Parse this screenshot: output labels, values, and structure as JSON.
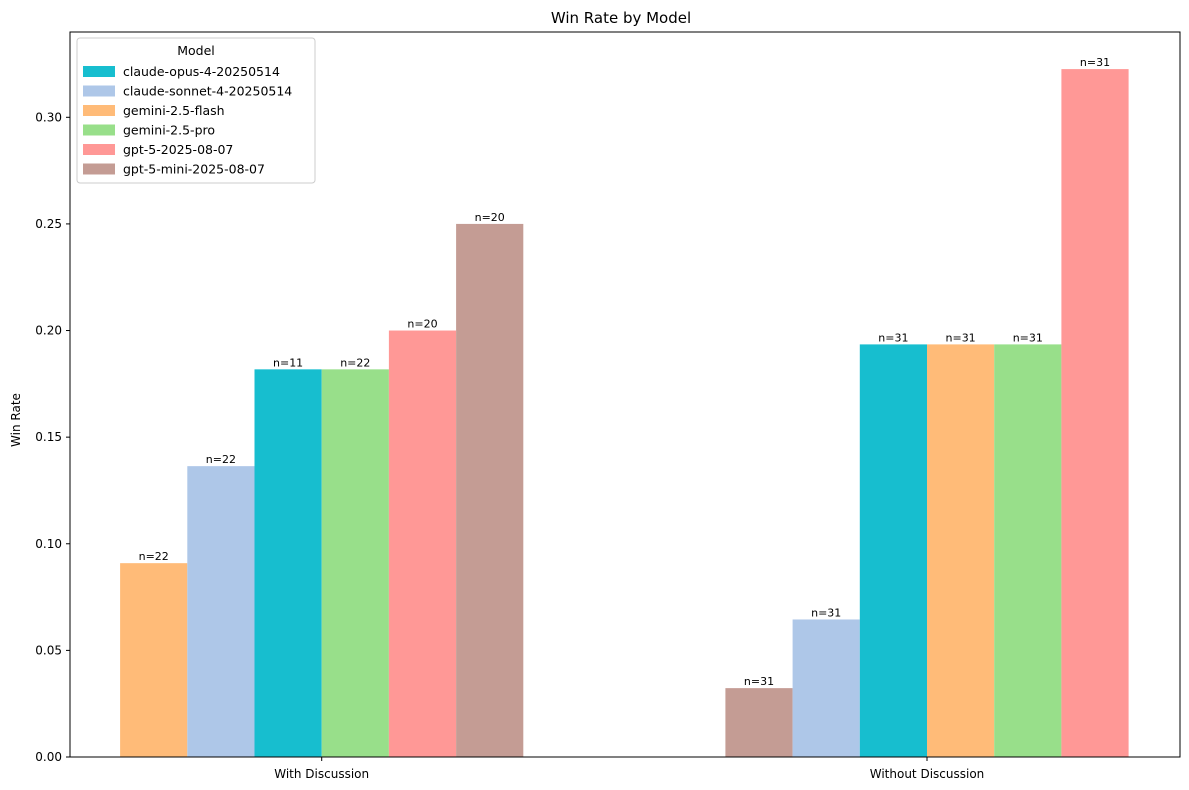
{
  "chart_data": {
    "type": "bar",
    "title": "Win Rate by Model",
    "xlabel": "",
    "ylabel": "Win Rate",
    "ylim": [
      0,
      0.34
    ],
    "yticks": [
      0.0,
      0.05,
      0.1,
      0.15,
      0.2,
      0.25,
      0.3
    ],
    "ytick_labels": [
      "0.00",
      "0.05",
      "0.10",
      "0.15",
      "0.20",
      "0.25",
      "0.30"
    ],
    "grid": false,
    "legend": {
      "title": "Model",
      "placement": "top-left",
      "entries": [
        {
          "name": "claude-opus-4-20250514",
          "color": "#17becf"
        },
        {
          "name": "claude-sonnet-4-20250514",
          "color": "#aec7e8"
        },
        {
          "name": "gemini-2.5-flash",
          "color": "#ffbb78"
        },
        {
          "name": "gemini-2.5-pro",
          "color": "#98df8a"
        },
        {
          "name": "gpt-5-2025-08-07",
          "color": "#ff9896"
        },
        {
          "name": "gpt-5-mini-2025-08-07",
          "color": "#c49c94"
        }
      ]
    },
    "groups": [
      {
        "category": "With Discussion",
        "bars": [
          {
            "model": "gemini-2.5-flash",
            "value": 0.0909,
            "label": "n=22"
          },
          {
            "model": "claude-sonnet-4-20250514",
            "value": 0.1364,
            "label": "n=22"
          },
          {
            "model": "claude-opus-4-20250514",
            "value": 0.1818,
            "label": "n=11"
          },
          {
            "model": "gemini-2.5-pro",
            "value": 0.1818,
            "label": "n=22"
          },
          {
            "model": "gpt-5-2025-08-07",
            "value": 0.2,
            "label": "n=20"
          },
          {
            "model": "gpt-5-mini-2025-08-07",
            "value": 0.25,
            "label": "n=20"
          }
        ]
      },
      {
        "category": "Without Discussion",
        "bars": [
          {
            "model": "gpt-5-mini-2025-08-07",
            "value": 0.0323,
            "label": "n=31"
          },
          {
            "model": "claude-sonnet-4-20250514",
            "value": 0.0645,
            "label": "n=31"
          },
          {
            "model": "claude-opus-4-20250514",
            "value": 0.1935,
            "label": "n=31"
          },
          {
            "model": "gemini-2.5-flash",
            "value": 0.1935,
            "label": "n=31"
          },
          {
            "model": "gemini-2.5-pro",
            "value": 0.1935,
            "label": "n=31"
          },
          {
            "model": "gpt-5-2025-08-07",
            "value": 0.3226,
            "label": "n=31"
          }
        ]
      }
    ]
  }
}
